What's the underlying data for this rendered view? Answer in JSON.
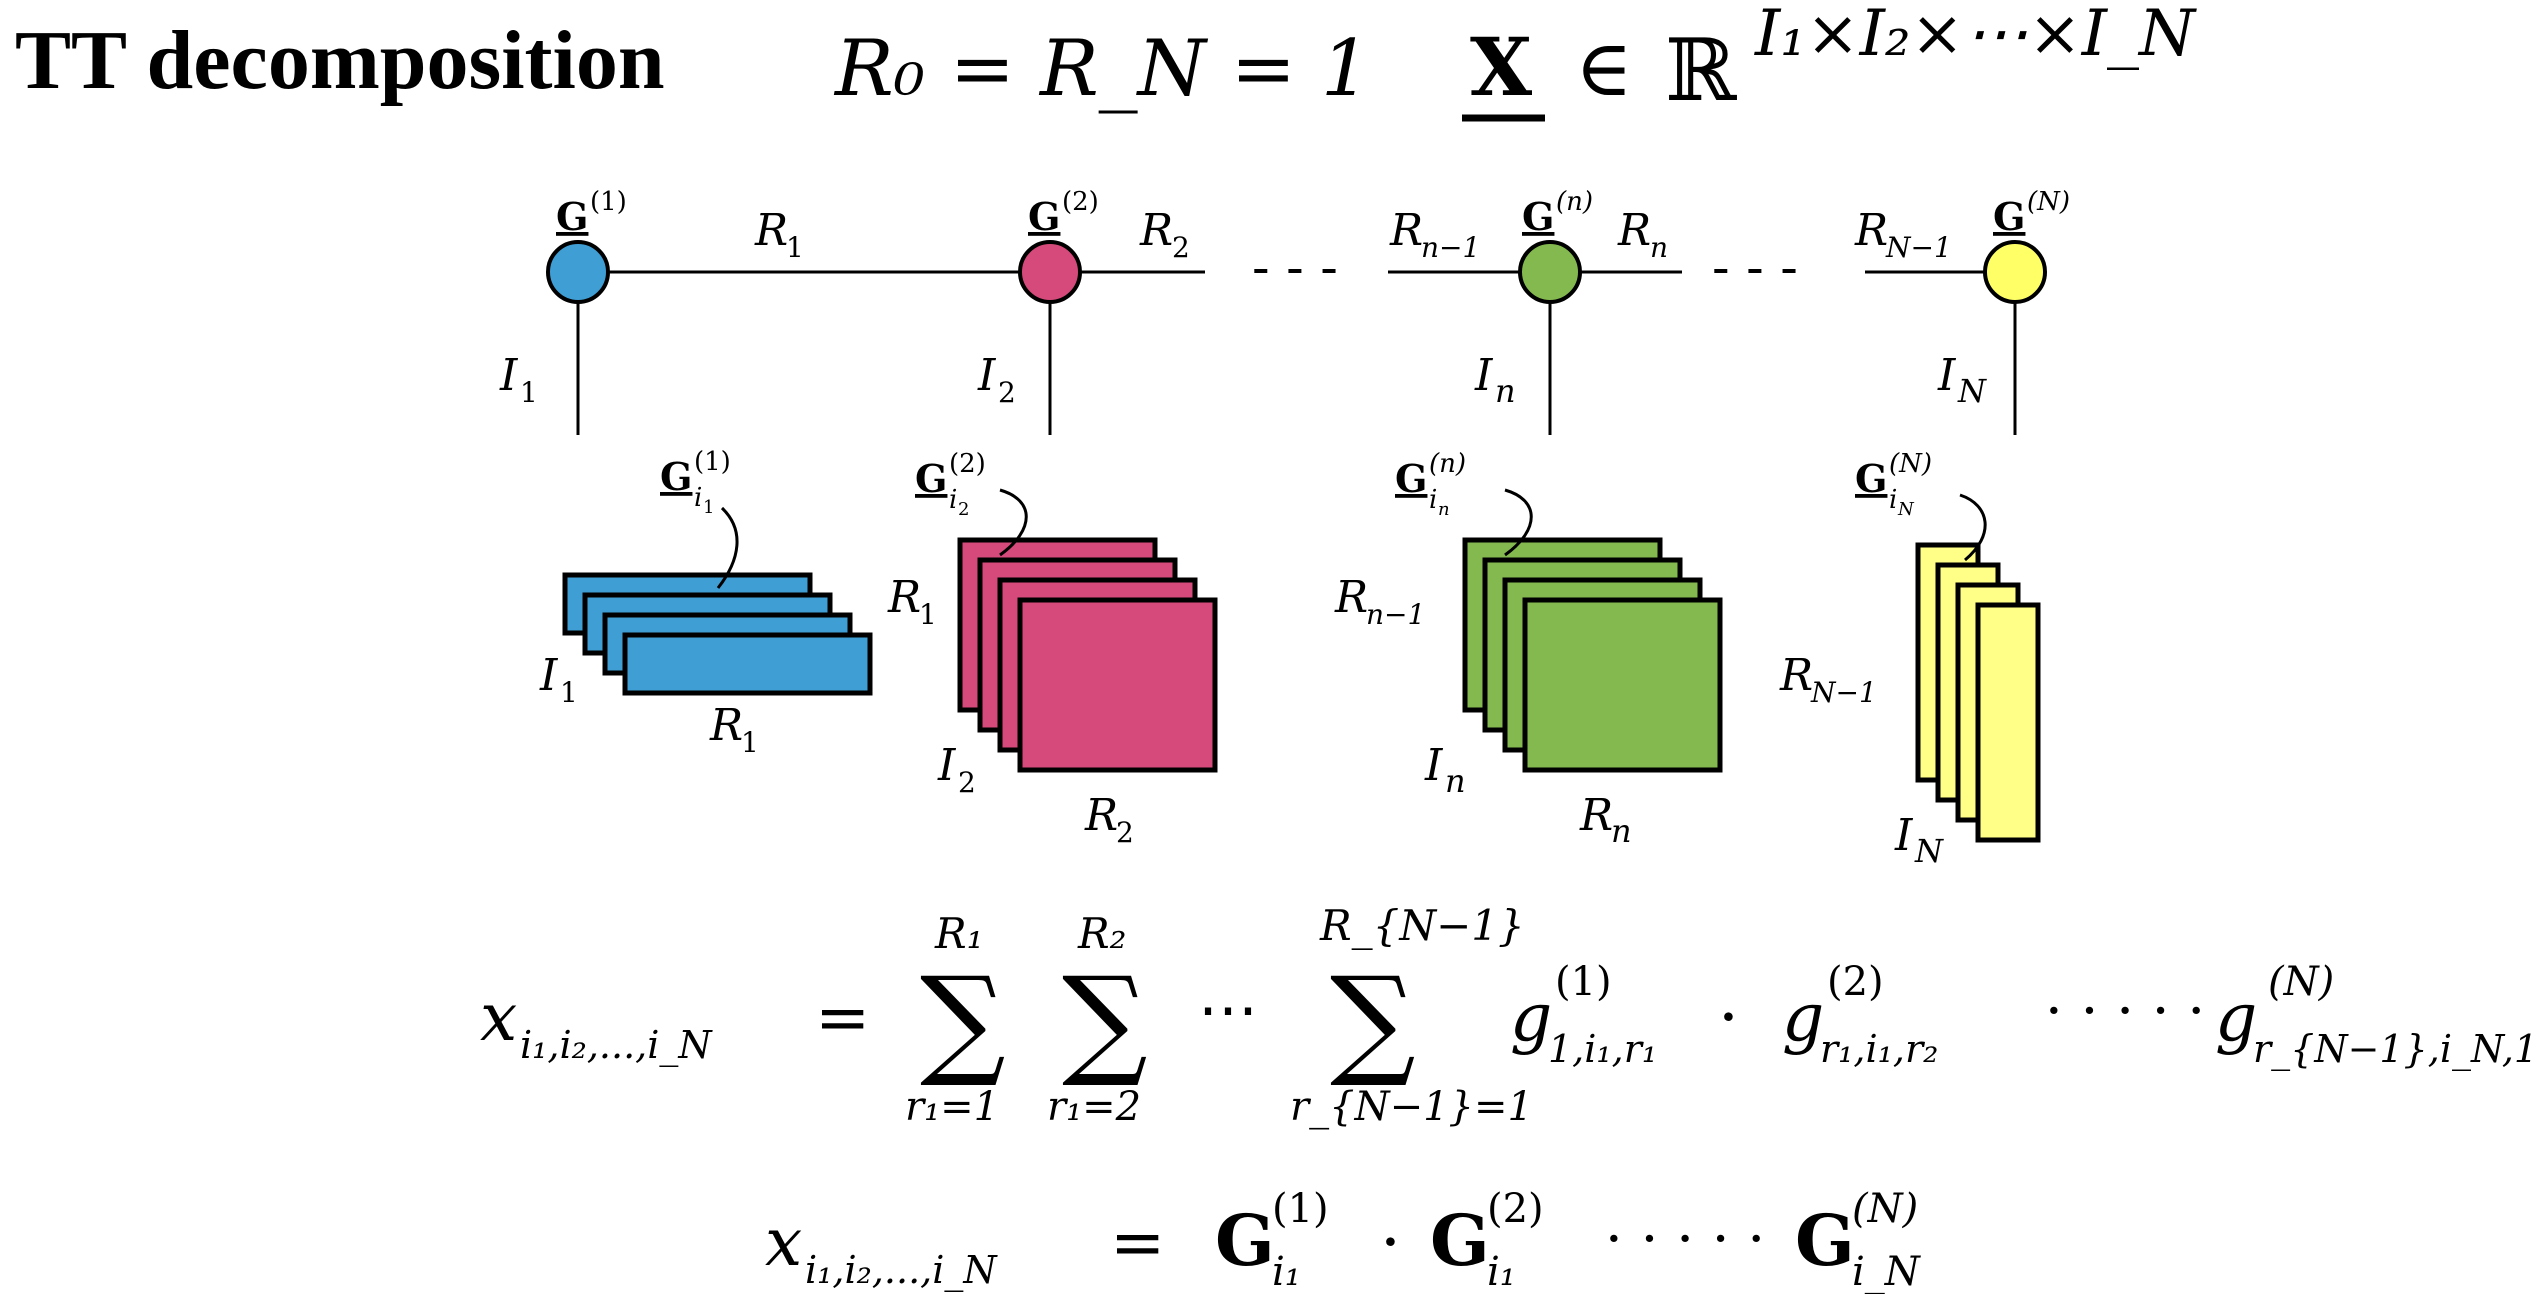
{
  "header": {
    "title": "TT decomposition",
    "boundary_condition": "R₀ = R_N = 1",
    "tensor_symbol": "X",
    "member_of": "∈",
    "space": "ℝ",
    "space_dims": "I₁×I₂×⋯×I_N"
  },
  "network": {
    "ellipsis": "- - -",
    "nodes": [
      {
        "core": "G",
        "superscript": "(1)",
        "mode": "I",
        "mode_sub": "1",
        "color": "#3F9ED3"
      },
      {
        "core": "G",
        "superscript": "(2)",
        "mode": "I",
        "mode_sub": "2",
        "color": "#D54A7A"
      },
      {
        "core": "G",
        "superscript": "(n)",
        "mode": "I",
        "mode_sub": "n",
        "color": "#84B94F"
      },
      {
        "core": "G",
        "superscript": "(N)",
        "mode": "I",
        "mode_sub": "N",
        "color": "#FFFF66"
      }
    ],
    "bonds": [
      {
        "label": "R",
        "sub": "1"
      },
      {
        "label": "R",
        "sub": "2"
      },
      {
        "label": "R",
        "sub": "n−1"
      },
      {
        "label": "R",
        "sub": "n"
      },
      {
        "label": "R",
        "sub": "N−1"
      }
    ]
  },
  "slices": [
    {
      "core": "G",
      "sup": "(1)",
      "sub": "i",
      "subsub": "1",
      "dim_a": "I",
      "dim_a_sub": "1",
      "dim_b": "R",
      "dim_b_sub": "1"
    },
    {
      "core": "G",
      "sup": "(2)",
      "sub": "i",
      "subsub": "2",
      "dim_left": "R",
      "dim_left_sub": "1",
      "dim_a": "I",
      "dim_a_sub": "2",
      "dim_b": "R",
      "dim_b_sub": "2"
    },
    {
      "core": "G",
      "sup": "(n)",
      "sub": "i",
      "subsub": "n",
      "dim_left": "R",
      "dim_left_sub": "n−1",
      "dim_a": "I",
      "dim_a_sub": "n",
      "dim_b": "R",
      "dim_b_sub": "n"
    },
    {
      "core": "G",
      "sup": "(N)",
      "sub": "i",
      "subsub": "N",
      "dim_left": "R",
      "dim_left_sub": "N−1",
      "dim_a": "I",
      "dim_a_sub": "N"
    }
  ],
  "formulas": {
    "lhs_var": "x",
    "lhs_sub": "i₁,i₂,...,i_N",
    "equals": "=",
    "sum_symbol": "∑",
    "sums": [
      {
        "upper": "R₁",
        "lower": "r₁=1"
      },
      {
        "upper": "R₂",
        "lower": "r₁=2"
      },
      {
        "upper": "R_{N−1}",
        "lower": "r_{N−1}=1"
      }
    ],
    "cdots": "⋯",
    "dots": "· · · · ·",
    "dot": "·",
    "terms": [
      {
        "var": "g",
        "sup": "(1)",
        "sub": "1,i₁,r₁"
      },
      {
        "var": "g",
        "sup": "(2)",
        "sub": "r₁,i₁,r₂"
      },
      {
        "var": "g",
        "sup": "(N)",
        "sub": "r_{N−1},i_N,1"
      }
    ],
    "matrix_terms": [
      {
        "var": "G",
        "sup": "(1)",
        "sub": "i₁"
      },
      {
        "var": "G",
        "sup": "(2)",
        "sub": "i₁"
      },
      {
        "var": "G",
        "sup": "(N)",
        "sub": "i_N"
      }
    ]
  }
}
